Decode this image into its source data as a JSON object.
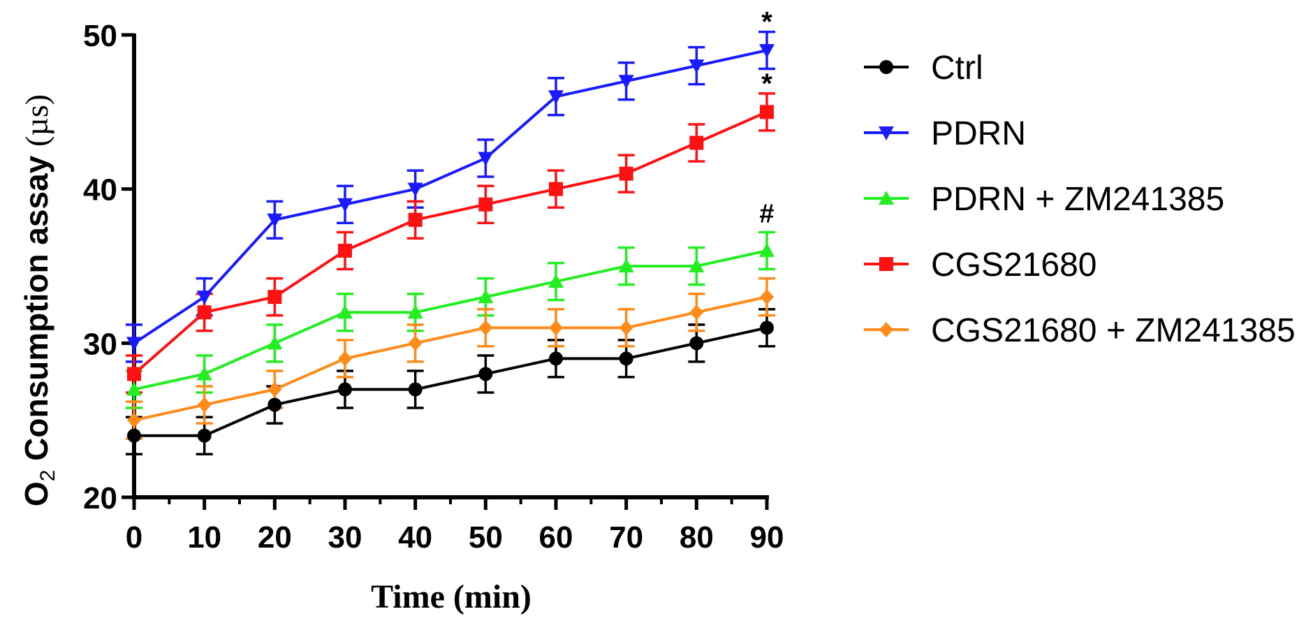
{
  "chart_data": {
    "type": "line",
    "xlabel": "Time (min)",
    "ylabel": {
      "main": "O",
      "subscript": "2",
      "rest": " Consumption assay ",
      "unit": "(µs)"
    },
    "xlim": [
      0,
      90
    ],
    "ylim": [
      20,
      50
    ],
    "xticks": [
      "0",
      "10",
      "20",
      "30",
      "40",
      "50",
      "60",
      "70",
      "80",
      "90"
    ],
    "yticks": [
      "20",
      "30",
      "40",
      "50"
    ],
    "grid": false,
    "legend_position": "right",
    "x": [
      0,
      10,
      20,
      30,
      40,
      50,
      60,
      70,
      80,
      90
    ],
    "series": [
      {
        "name": "Ctrl",
        "color": "#000000",
        "marker": "circle",
        "values": [
          24,
          24,
          26,
          27,
          27,
          28,
          29,
          29,
          30,
          31
        ],
        "error": [
          1.2,
          1.2,
          1.2,
          1.2,
          1.2,
          1.2,
          1.2,
          1.2,
          1.2,
          1.2
        ]
      },
      {
        "name": "PDRN",
        "color": "#1a1aff",
        "marker": "triangle-down",
        "values": [
          30,
          33,
          38,
          39,
          40,
          42,
          46,
          47,
          48,
          49
        ],
        "error": [
          1.2,
          1.2,
          1.2,
          1.2,
          1.2,
          1.2,
          1.2,
          1.2,
          1.2,
          1.2
        ]
      },
      {
        "name": "PDRN + ZM241385",
        "color": "#22ee22",
        "marker": "triangle-up",
        "values": [
          27,
          28,
          30,
          32,
          32,
          33,
          34,
          35,
          35,
          36
        ],
        "error": [
          1.2,
          1.2,
          1.2,
          1.2,
          1.2,
          1.2,
          1.2,
          1.2,
          1.2,
          1.2
        ]
      },
      {
        "name": "CGS21680",
        "color": "#ff1111",
        "marker": "square",
        "values": [
          28,
          32,
          33,
          36,
          38,
          39,
          40,
          41,
          43,
          45
        ],
        "error": [
          1.2,
          1.2,
          1.2,
          1.2,
          1.2,
          1.2,
          1.2,
          1.2,
          1.2,
          1.2
        ]
      },
      {
        "name": "CGS21680 + ZM241385",
        "color": "#ff8c1a",
        "marker": "diamond",
        "values": [
          25,
          26,
          27,
          29,
          30,
          31,
          31,
          31,
          32,
          33
        ],
        "error": [
          1.2,
          1.2,
          1.2,
          1.2,
          1.2,
          1.2,
          1.2,
          1.2,
          1.2,
          1.2
        ]
      }
    ],
    "annotations": [
      {
        "text": "*",
        "x": 90,
        "series": "PDRN"
      },
      {
        "text": "*",
        "x": 90,
        "series": "CGS21680"
      },
      {
        "text": "#",
        "x": 90,
        "series": "PDRN + ZM241385"
      }
    ]
  }
}
